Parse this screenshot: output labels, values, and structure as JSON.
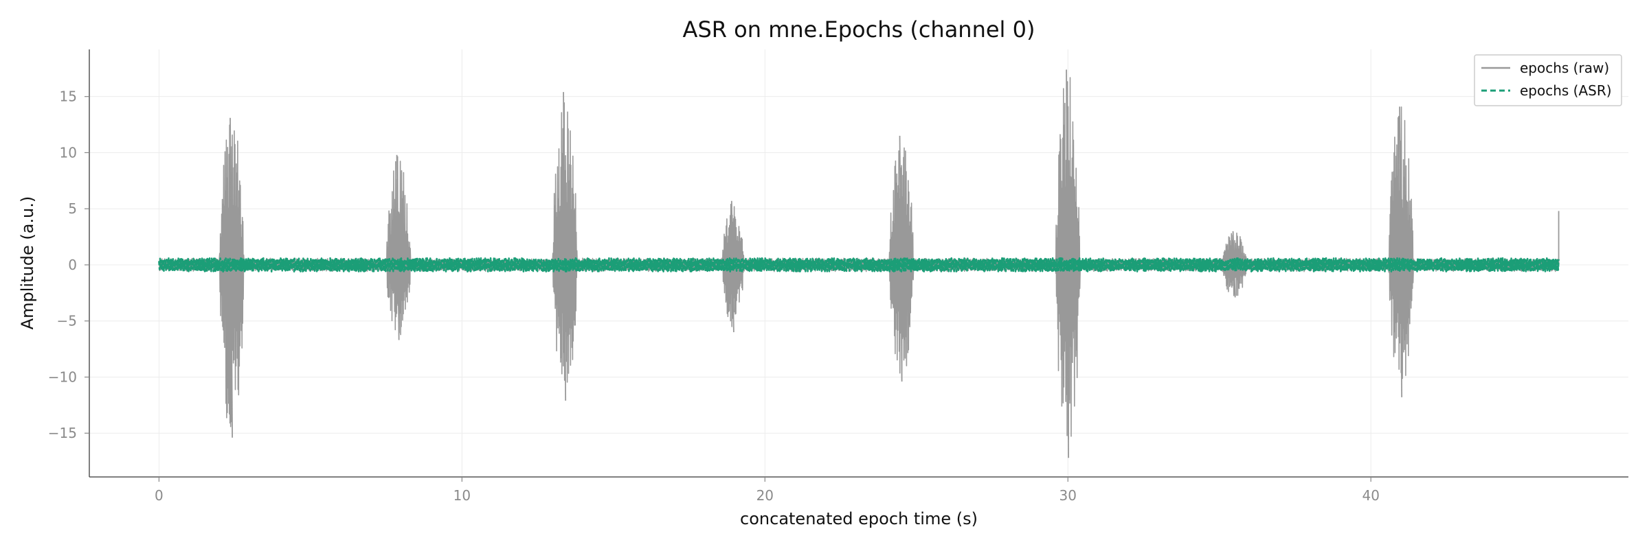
{
  "chart_data": {
    "type": "line",
    "title": "ASR on mne.Epochs (channel 0)",
    "xlabel": "concatenated epoch time (s)",
    "ylabel": "Amplitude (a.u.)",
    "xlim": [
      -2.3,
      48.5
    ],
    "ylim": [
      -18.9,
      19.2
    ],
    "xticks": [
      0,
      10,
      20,
      30,
      40
    ],
    "xtick_labels": [
      "0",
      "10",
      "20",
      "30",
      "40"
    ],
    "yticks": [
      -15,
      -10,
      -5,
      0,
      5,
      10,
      15
    ],
    "ytick_labels": [
      "−15",
      "−10",
      "−5",
      "0",
      "5",
      "10",
      "15"
    ],
    "grid": true,
    "legend_position": "top-right",
    "x_range": [
      0,
      46.2
    ],
    "baseline_amplitude": 0.6,
    "bursts": [
      {
        "start": 2.0,
        "end": 2.8,
        "max": 13.1,
        "min": -15.4
      },
      {
        "start": 7.5,
        "end": 8.3,
        "max": 9.8,
        "min": -6.7
      },
      {
        "start": 13.0,
        "end": 13.8,
        "max": 15.4,
        "min": -12.1
      },
      {
        "start": 18.6,
        "end": 19.3,
        "max": 5.7,
        "min": -6.0
      },
      {
        "start": 24.1,
        "end": 24.9,
        "max": 11.5,
        "min": -10.4
      },
      {
        "start": 29.6,
        "end": 30.4,
        "max": 17.4,
        "min": -17.2
      },
      {
        "start": 35.1,
        "end": 35.9,
        "max": 3.0,
        "min": -2.9
      },
      {
        "start": 40.6,
        "end": 41.4,
        "max": 14.1,
        "min": -11.8
      }
    ],
    "end_spike": {
      "x": 46.2,
      "max": 4.8
    },
    "series": [
      {
        "name": "epochs (raw)",
        "color": "#999999",
        "style": "solid"
      },
      {
        "name": "epochs (ASR)",
        "color": "#1b9e77",
        "style": "dashed"
      }
    ]
  }
}
